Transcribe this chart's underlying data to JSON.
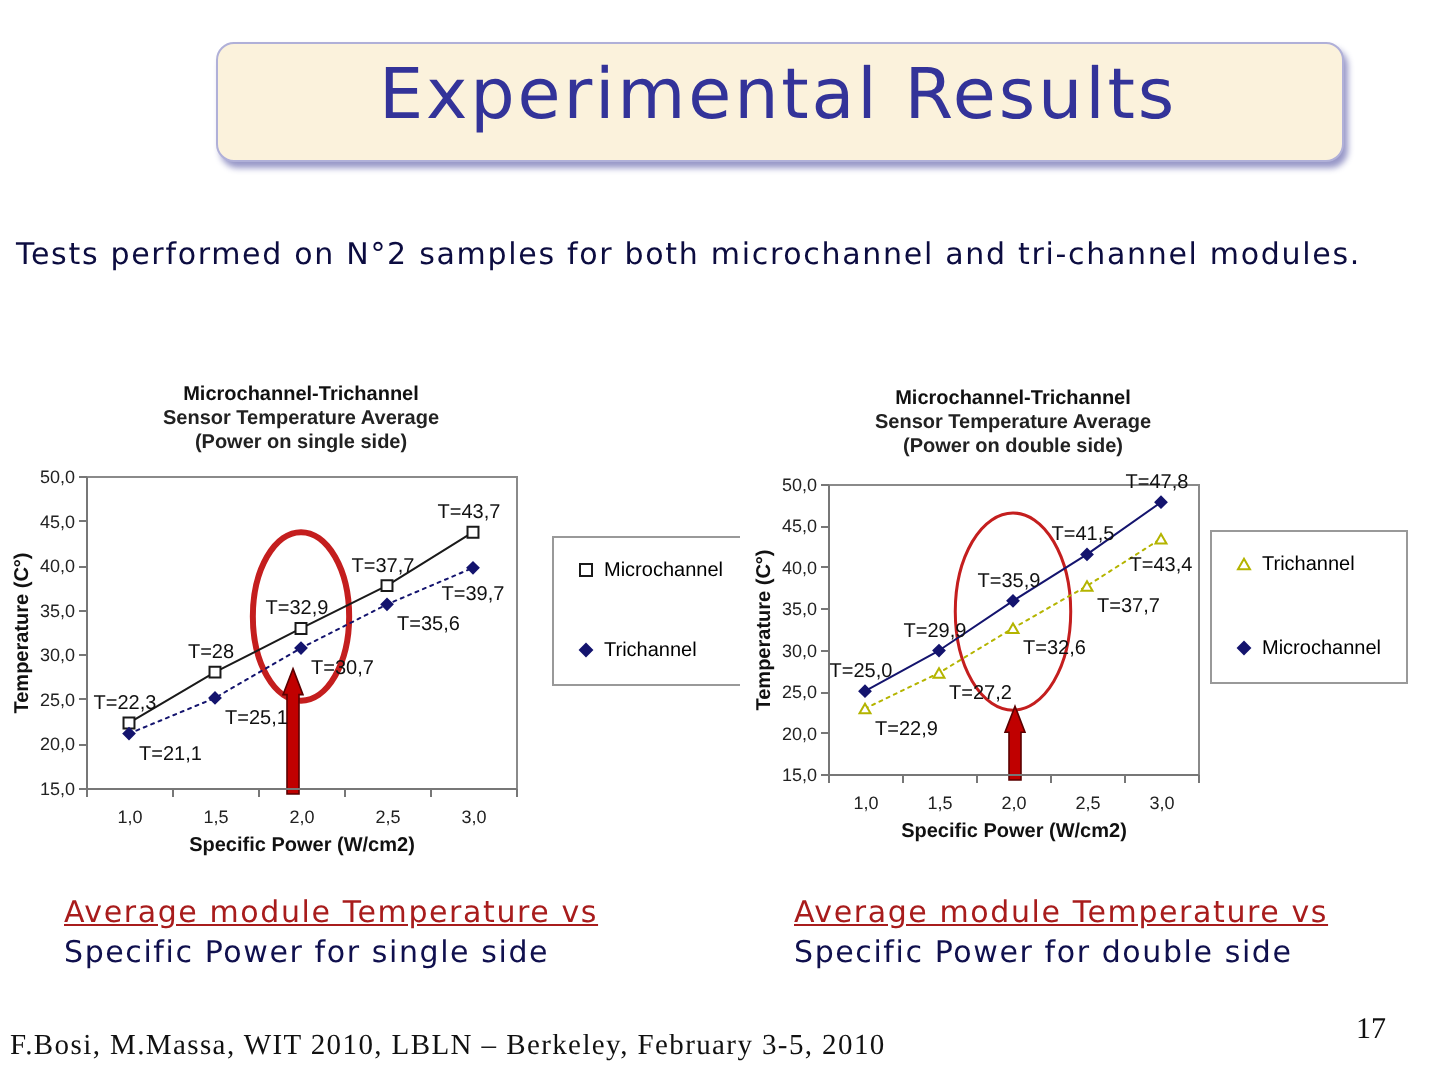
{
  "chart_data": [
    {
      "type": "other",
      "title": "Experimental Results",
      "subtitle": "Tests performed on N°2 samples for both microchannel and tri-channel modules.",
      "annotations": [
        "F.Bosi, M.Massa, WIT 2010, LBLN – Berkeley, February 3-5, 2010",
        "17"
      ]
    },
    {
      "type": "line",
      "title": "Microchannel-Trichannel",
      "subtitle": "Sensor Temperature Average\n(Power on single side)",
      "xlabel": "Specific Power (W/cm2)",
      "ylabel": "Temperature (C°)",
      "categories": [
        "1,0",
        "1,5",
        "2,0",
        "2,5",
        "3,0"
      ],
      "series": [
        {
          "name": "Microchannel",
          "color": "#1a1a1a",
          "marker": "square",
          "line_style": "solid",
          "values": [
            22.3,
            28,
            32.9,
            37.7,
            43.7
          ],
          "value_labels": [
            "T=22,3",
            "T=28",
            "T=32,9",
            "T=37,7",
            "T=43,7"
          ]
        },
        {
          "name": "Trichannel",
          "color": "#14146e",
          "marker": "diamond",
          "line_style": "dotted",
          "values": [
            21.1,
            25.1,
            30.7,
            35.6,
            39.7
          ],
          "value_labels": [
            "T=21,1",
            "T=25,1",
            "T=30,7",
            "T=35,6",
            "T=39,7"
          ]
        }
      ],
      "ylim": [
        15,
        50
      ],
      "yticks": [
        {
          "value": 15,
          "label": "15,0"
        },
        {
          "value": 20,
          "label": "20,0"
        },
        {
          "value": 25,
          "label": "25,0"
        },
        {
          "value": 30,
          "label": "30,0"
        },
        {
          "value": 35,
          "label": "35,0"
        },
        {
          "value": 40,
          "label": "40,0"
        },
        {
          "value": 45,
          "label": "45,0"
        },
        {
          "value": 50,
          "label": "50,0"
        }
      ],
      "legend": "right",
      "annotations": [
        "Average module Temperature vs",
        "Specific Power for single side"
      ]
    },
    {
      "type": "line",
      "title": "Microchannel-Trichannel",
      "subtitle": "Sensor Temperature Average\n(Power on double side)",
      "xlabel": "Specific Power (W/cm2)",
      "ylabel": "Temperature (C°)",
      "categories": [
        "1,0",
        "1,5",
        "2,0",
        "2,5",
        "3,0"
      ],
      "series": [
        {
          "name": "Trichannel",
          "color": "#b4b400",
          "marker": "triangle",
          "line_style": "dotted",
          "values": [
            22.9,
            27.2,
            32.6,
            37.7,
            43.4
          ],
          "value_labels": [
            "T=22,9",
            "T=27,2",
            "T=32,6",
            "T=37,7",
            "T=43,4"
          ]
        },
        {
          "name": "Microchannel",
          "color": "#14146e",
          "marker": "diamond",
          "line_style": "solid",
          "values": [
            25.0,
            29.9,
            35.9,
            41.5,
            47.8
          ],
          "value_labels": [
            "T=25,0",
            "T=29,9",
            "T=35,9",
            "T=41,5",
            "T=47,8"
          ]
        }
      ],
      "ylim": [
        15,
        50
      ],
      "yticks": [
        {
          "value": 15,
          "label": "15,0"
        },
        {
          "value": 20,
          "label": "20,0"
        },
        {
          "value": 25,
          "label": "25,0"
        },
        {
          "value": 30,
          "label": "30,0"
        },
        {
          "value": 35,
          "label": "35,0"
        },
        {
          "value": 40,
          "label": "40,0"
        },
        {
          "value": 45,
          "label": "45,0"
        },
        {
          "value": 50,
          "label": "50,0"
        }
      ],
      "legend": "right",
      "annotations": [
        "Average module Temperature vs",
        "Specific Power for double side"
      ]
    }
  ]
}
